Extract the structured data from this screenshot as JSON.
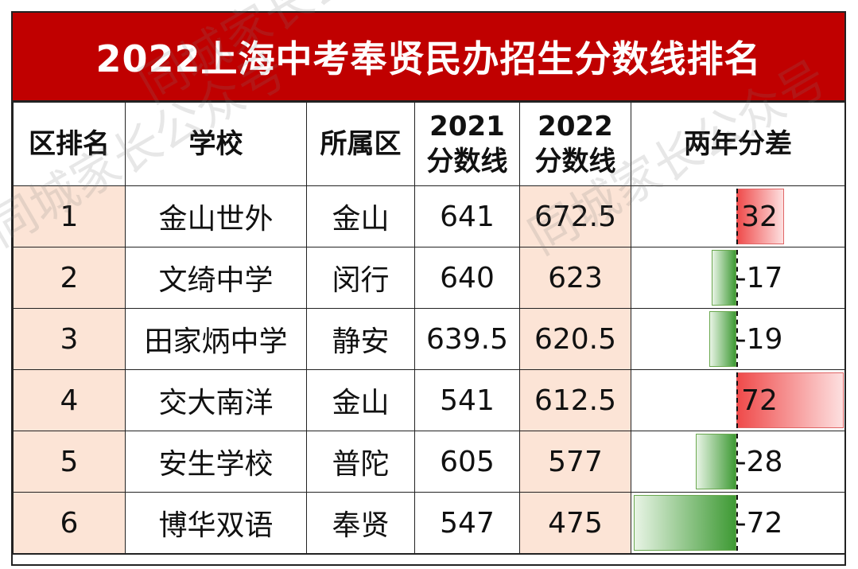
{
  "title": "2022上海中考奉贤民办招生分数线排名",
  "headers": {
    "rank": "区排名",
    "school": "学校",
    "district": "所属区",
    "y2021_year": "2021",
    "y2021_label": "分数线",
    "y2022_year": "2022",
    "y2022_label": "分数线",
    "diff": "两年分差"
  },
  "rows": [
    {
      "rank": "1",
      "school": "金山世外",
      "district": "金山",
      "s2021": "641",
      "s2022": "672.5",
      "diff": 32
    },
    {
      "rank": "2",
      "school": "文绮中学",
      "district": "闵行",
      "s2021": "640",
      "s2022": "623",
      "diff": -17
    },
    {
      "rank": "3",
      "school": "田家炳中学",
      "district": "静安",
      "s2021": "639.5",
      "s2022": "620.5",
      "diff": -19
    },
    {
      "rank": "4",
      "school": "交大南洋",
      "district": "金山",
      "s2021": "541",
      "s2022": "612.5",
      "diff": 72
    },
    {
      "rank": "5",
      "school": "安生学校",
      "district": "普陀",
      "s2021": "605",
      "s2022": "577",
      "diff": -28
    },
    {
      "rank": "6",
      "school": "博华双语",
      "district": "奉贤",
      "s2021": "547",
      "s2022": "475",
      "diff": -72
    }
  ],
  "colors": {
    "title_bg": "#c00000",
    "highlight": "#fce4d6",
    "positive_bar": "#ef4a4a",
    "negative_bar": "#3e9a34"
  },
  "watermark": "同城家长公众号"
}
